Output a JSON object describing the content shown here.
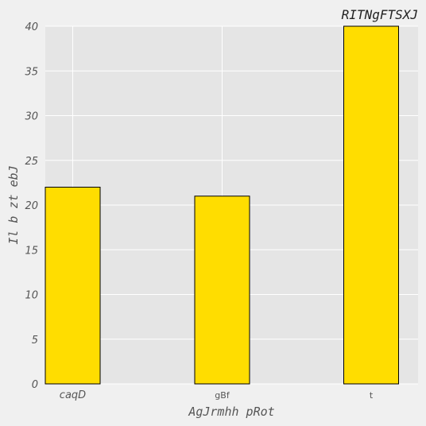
{
  "chart_data": {
    "type": "bar",
    "title": "RITNgFTSXJ",
    "xlabel": "AgJrmhh  pRot",
    "ylabel": "Il b zt ebJ",
    "categories": [
      "caqD",
      "gBf",
      "t"
    ],
    "values": [
      22,
      21,
      40
    ],
    "ylim": [
      0,
      40
    ],
    "yticks": [
      "0",
      "5",
      "10",
      "15",
      "20",
      "25",
      "30",
      "35",
      "40"
    ],
    "grid": true,
    "bar_color": "#ffdd00",
    "plot_background": "#e5e5e5",
    "grid_color": "#ffffff"
  }
}
